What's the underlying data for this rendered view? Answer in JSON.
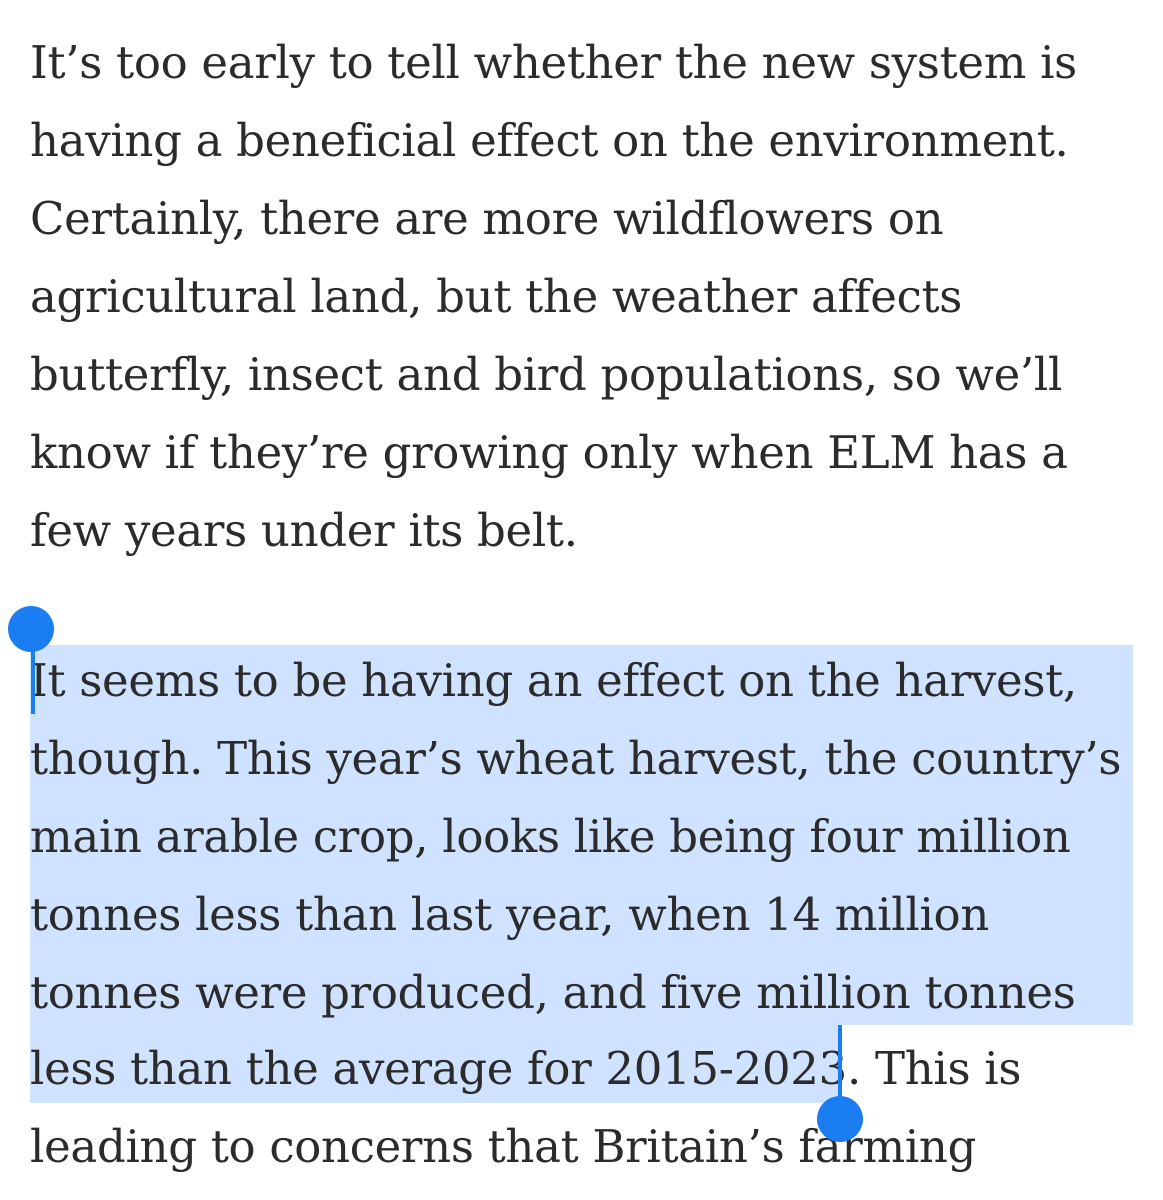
{
  "article": {
    "paragraph1": {
      "lines": [
        "It’s too early to tell whether the new system is",
        "having a beneficial effect on the environment.",
        "Certainly, there are more wildflowers on",
        "agricultural land, but the weather affects",
        "butterfly, insect and bird populations, so we’ll",
        "know if they’re growing only when ELM has a",
        "few years under its belt."
      ]
    },
    "paragraph2": {
      "selected_lines": [
        "It seems to be having an effect on the harvest,",
        "though. This year’s wheat harvest, the country’s",
        "main arable crop, looks like being four million",
        "tonnes less than last year, when 14 million",
        "tonnes were produced, and five million tonnes",
        "less than the average for 2015-2023"
      ],
      "unselected_tail": ". This is",
      "next_line": "leading to concerns that Britain’s farming"
    }
  },
  "selection": {
    "color": "#cfe2ff",
    "handle_color": "#1a7df2"
  }
}
